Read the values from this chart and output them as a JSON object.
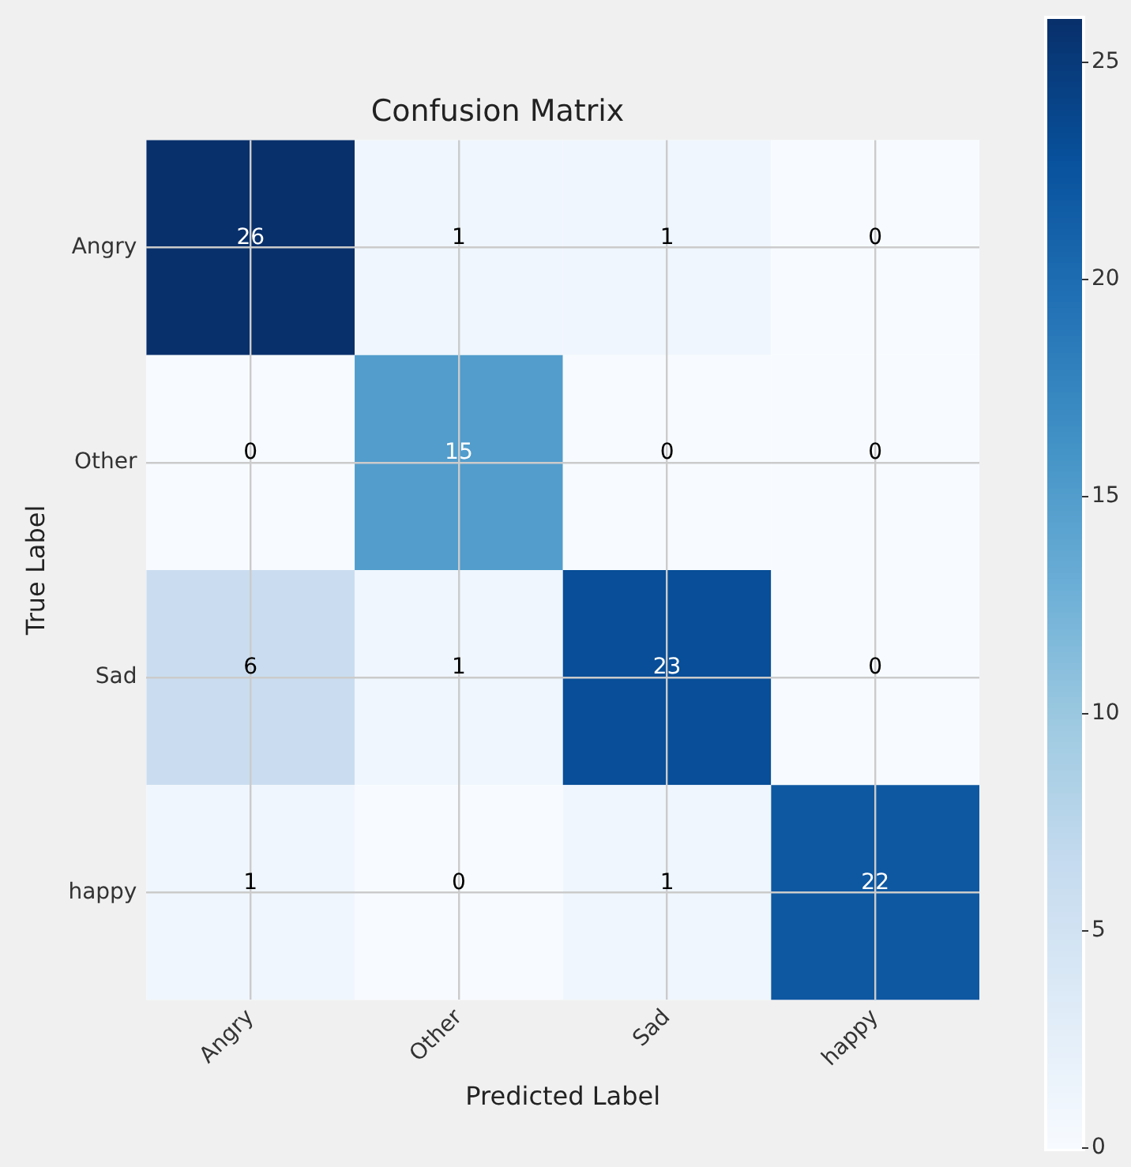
{
  "chart_data": {
    "type": "heatmap",
    "title": "Confusion Matrix",
    "xlabel": "Predicted Label",
    "ylabel": "True Label",
    "categories": [
      "Angry",
      "Other",
      "Sad",
      "happy"
    ],
    "y_categories": [
      "Angry",
      "Other",
      "Sad",
      "happy"
    ],
    "cells": [
      [
        26,
        1,
        1,
        0
      ],
      [
        0,
        15,
        0,
        0
      ],
      [
        6,
        1,
        23,
        0
      ],
      [
        1,
        0,
        1,
        22
      ]
    ],
    "clim": [
      0,
      26
    ],
    "cticks": [
      0,
      5,
      10,
      15,
      20,
      25
    ],
    "data_labels": true,
    "grid": true
  }
}
